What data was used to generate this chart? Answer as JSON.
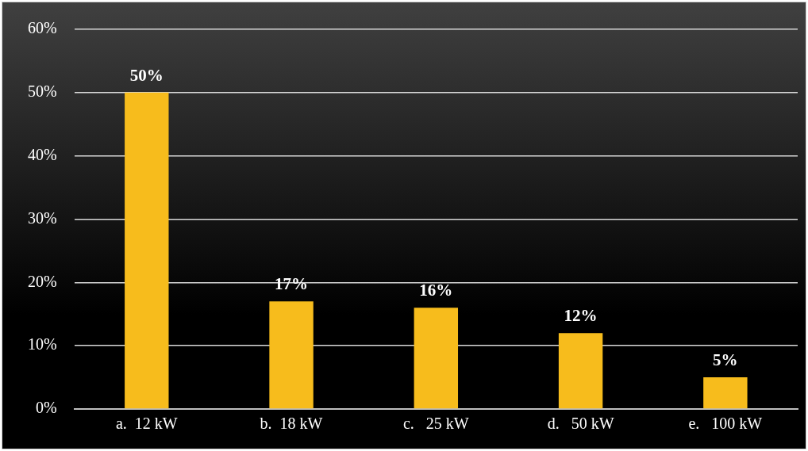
{
  "chart_data": {
    "type": "bar",
    "categories": [
      "a.  12 kW",
      "b.  18 kW",
      "c.   25 kW",
      "d.   50 kW",
      "e.   100 kW"
    ],
    "values": [
      50,
      17,
      16,
      12,
      5
    ],
    "value_labels": [
      "50%",
      "17%",
      "16%",
      "12%",
      "5%"
    ],
    "color": "#f7bc1c",
    "ylim": [
      0,
      60
    ],
    "yticks": [
      {
        "value": 0,
        "label": "0%"
      },
      {
        "value": 10,
        "label": "10%"
      },
      {
        "value": 20,
        "label": "20%"
      },
      {
        "value": 30,
        "label": "30%"
      },
      {
        "value": 40,
        "label": "40%"
      },
      {
        "value": 50,
        "label": "50%"
      },
      {
        "value": 60,
        "label": "60%"
      }
    ],
    "grid": "y",
    "legend": false
  }
}
